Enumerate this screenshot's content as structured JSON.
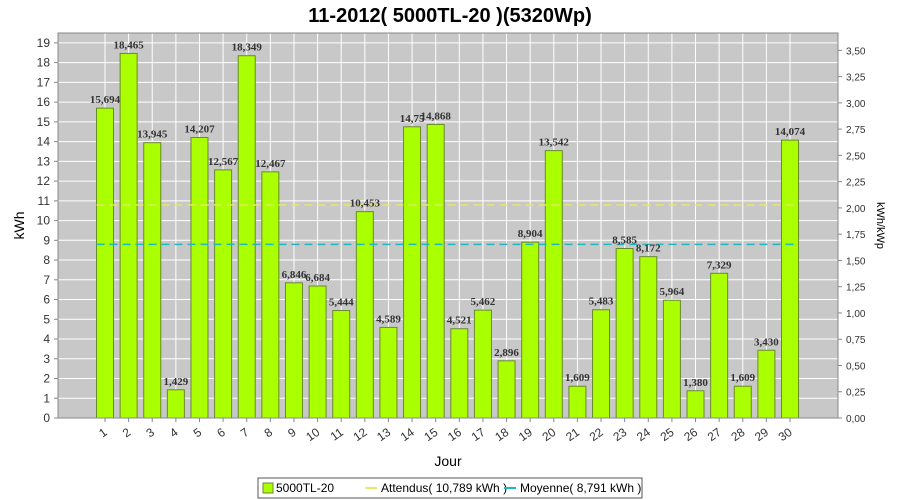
{
  "chart_data": {
    "type": "bar",
    "title": "11-2012( 5000TL-20 )(5320Wp)",
    "xlabel": "Jour",
    "ylabel": "kWh",
    "ylabel_right": "kWh/kWp",
    "ylim": [
      0,
      19.5
    ],
    "y_ticks": [
      0,
      1,
      2,
      3,
      4,
      5,
      6,
      7,
      8,
      9,
      10,
      11,
      12,
      13,
      14,
      15,
      16,
      17,
      18,
      19
    ],
    "ylim_right": [
      0,
      3.665
    ],
    "y_ticks_right": [
      "0,00",
      "0,25",
      "0,50",
      "0,75",
      "1,00",
      "1,25",
      "1,50",
      "1,75",
      "2,00",
      "2,25",
      "2,50",
      "2,75",
      "3,00",
      "3,25",
      "3,50"
    ],
    "grid": true,
    "legend_position": "bottom",
    "categories": [
      "1",
      "2",
      "3",
      "4",
      "5",
      "6",
      "7",
      "8",
      "9",
      "10",
      "11",
      "12",
      "13",
      "14",
      "15",
      "16",
      "17",
      "18",
      "19",
      "20",
      "21",
      "22",
      "23",
      "24",
      "25",
      "26",
      "27",
      "28",
      "29",
      "30"
    ],
    "series": [
      {
        "name": "5000TL-20",
        "type": "bar",
        "color": "#aaff00",
        "values": [
          15.694,
          18.465,
          13.945,
          1.429,
          14.207,
          12.567,
          18.349,
          12.467,
          6.846,
          6.684,
          5.444,
          10.453,
          4.589,
          14.75,
          14.868,
          4.521,
          5.462,
          2.896,
          8.904,
          13.542,
          1.609,
          5.483,
          8.585,
          8.172,
          5.964,
          1.38,
          7.329,
          1.609,
          3.43,
          14.074
        ],
        "labels": [
          "15,694",
          "18,465",
          "13,945",
          "1,429",
          "14,207",
          "12,567",
          "18,349",
          "12,467",
          "6,846",
          "6,684",
          "5,444",
          "10,453",
          "4,589",
          "14,75",
          "14,868",
          "4,521",
          "5,462",
          "2,896",
          "8,904",
          "13,542",
          "1,609",
          "5,483",
          "8,585",
          "8,172",
          "5,964",
          "1,380",
          "7,329",
          "1,609",
          "3,430",
          "14,074"
        ]
      },
      {
        "name": "Attendus( 10,789 kWh )",
        "type": "line",
        "color": "#e8e860",
        "value": 10.789
      },
      {
        "name": "Moyenne( 8,791 kWh )",
        "type": "line",
        "color": "#20b8c0",
        "value": 8.791
      }
    ]
  }
}
